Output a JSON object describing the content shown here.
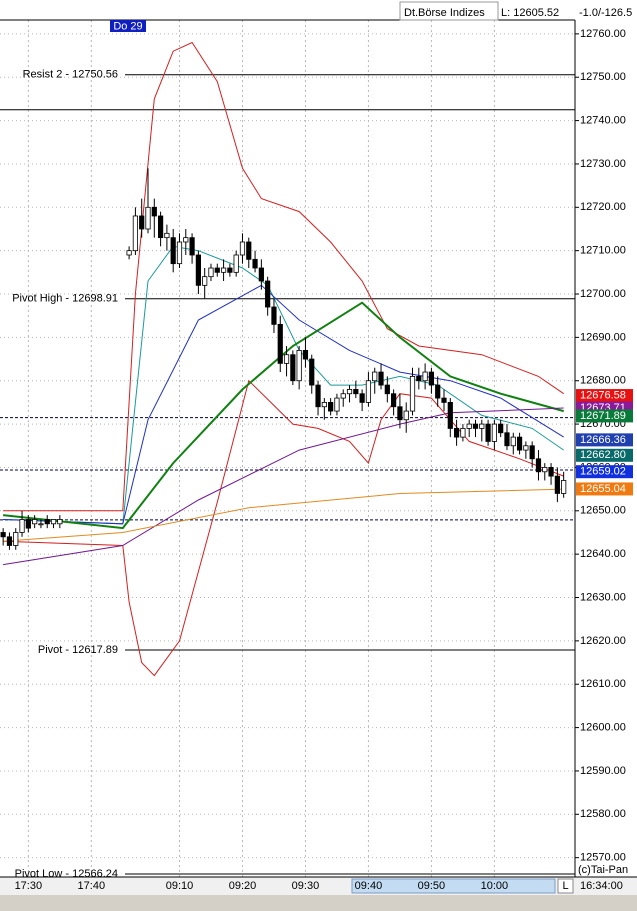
{
  "header": {
    "exchange": "Dt.Börse Indizes",
    "low": "L: 12605.52",
    "change": "-1.0/-126.5"
  },
  "chart_data": {
    "type": "candlestick",
    "day_label": "Do 29",
    "copyright": "(c)Tai-Pan",
    "current_time": "16:34:00",
    "scroll_label": "L",
    "up_color": "#ffffff",
    "down_color": "#000000",
    "x": [
      0,
      1,
      2,
      3,
      4,
      5,
      6,
      7,
      8,
      9,
      20,
      21,
      22,
      23,
      24,
      25,
      26,
      27,
      28,
      29,
      30,
      31,
      32,
      33,
      34,
      35,
      36,
      37,
      38,
      39,
      40,
      41,
      42,
      43,
      44,
      45,
      46,
      47,
      48,
      49,
      50,
      51,
      52,
      53,
      54,
      55,
      56,
      57,
      58,
      59,
      60,
      61,
      62,
      63,
      64,
      65,
      66,
      67,
      68,
      69,
      70,
      71,
      72,
      73,
      74,
      75,
      76,
      77,
      78,
      79,
      80,
      81,
      82,
      83,
      84,
      85,
      86,
      87,
      88,
      89
    ],
    "open": [
      12645,
      12644,
      12642,
      12645,
      12648,
      12647,
      12647,
      12648,
      12647,
      12647,
      12709,
      12710,
      12718,
      12715,
      12720,
      12718,
      12713,
      12713,
      12707,
      12712,
      12713,
      12709,
      12702,
      12704,
      12706,
      12705,
      12706,
      12705,
      12709,
      12712,
      12708,
      12706,
      12703,
      12697,
      12693,
      12684,
      12686,
      12680,
      12687,
      12685,
      12679,
      12674,
      12675,
      12673,
      12676,
      12677,
      12678,
      12677,
      12675,
      12680,
      12682,
      12679,
      12677,
      12674,
      12671,
      12673,
      12681,
      12680,
      12682,
      12679,
      12676,
      12675,
      12669,
      12667,
      12669,
      12670,
      12669,
      12670,
      12666,
      12670,
      12668,
      12665,
      12667,
      12664,
      12665,
      12662,
      12659,
      12660,
      12658,
      12654
    ],
    "high": [
      12646,
      12645,
      12646,
      12650,
      12649,
      12649,
      12648,
      12649,
      12648,
      12649,
      12711,
      12720,
      12722,
      12729,
      12722,
      12719,
      12716,
      12715,
      12714,
      12715,
      12714,
      12710,
      12706,
      12707,
      12707,
      12708,
      12707,
      12710,
      12714,
      12713,
      12710,
      12708,
      12704,
      12699,
      12695,
      12688,
      12687,
      12688,
      12690,
      12686,
      12680,
      12676,
      12676,
      12677,
      12678,
      12679,
      12680,
      12678,
      12682,
      12683,
      12684,
      12681,
      12678,
      12677,
      12675,
      12683,
      12683,
      12684,
      12683,
      12681,
      12678,
      12676,
      12671,
      12670,
      12671,
      12671,
      12671,
      12671,
      12671,
      12671,
      12670,
      12668,
      12668,
      12666,
      12666,
      12664,
      12661,
      12661,
      12660,
      12659
    ],
    "low": [
      12642,
      12641,
      12641,
      12644,
      12645,
      12646,
      12646,
      12646,
      12646,
      12646,
      12708,
      12709,
      12713,
      12714,
      12713,
      12711,
      12710,
      12705,
      12706,
      12709,
      12707,
      12700,
      12699,
      12703,
      12704,
      12703,
      12704,
      12704,
      12707,
      12706,
      12705,
      12701,
      12695,
      12691,
      12682,
      12681,
      12679,
      12678,
      12683,
      12677,
      12672,
      12671,
      12672,
      12672,
      12674,
      12675,
      12676,
      12673,
      12674,
      12677,
      12678,
      12675,
      12672,
      12669,
      12668,
      12672,
      12678,
      12678,
      12677,
      12674,
      12673,
      12667,
      12665,
      12666,
      12667,
      12667,
      12666,
      12665,
      12664,
      12667,
      12664,
      12663,
      12663,
      12662,
      12660,
      12657,
      12657,
      12656,
      12652,
      12653
    ],
    "close": [
      12644,
      12642,
      12645,
      12648,
      12646,
      12648,
      12647,
      12647,
      12648,
      12648,
      12710,
      12718,
      12715,
      12720,
      12718,
      12713,
      12714,
      12707,
      12712,
      12713,
      12709,
      12702,
      12704,
      12706,
      12705,
      12706,
      12705,
      12709,
      12712,
      12708,
      12706,
      12703,
      12697,
      12693,
      12684,
      12686,
      12680,
      12687,
      12685,
      12679,
      12674,
      12675,
      12673,
      12676,
      12677,
      12678,
      12677,
      12675,
      12680,
      12682,
      12679,
      12677,
      12674,
      12671,
      12673,
      12681,
      12680,
      12682,
      12679,
      12676,
      12675,
      12669,
      12667,
      12669,
      12670,
      12669,
      12670,
      12666,
      12670,
      12668,
      12665,
      12667,
      12664,
      12665,
      12662,
      12659,
      12660,
      12658,
      12654,
      12657
    ],
    "xlim": [
      -0.5,
      90.8
    ],
    "xticks": [
      {
        "value": 4,
        "label": "17:30"
      },
      {
        "value": 14,
        "label": "17:40"
      },
      {
        "value": 28,
        "label": "09:10"
      },
      {
        "value": 38,
        "label": "09:20"
      },
      {
        "value": 48,
        "label": "09:30"
      },
      {
        "value": 58,
        "label": "09:40"
      },
      {
        "value": 68,
        "label": "09:50"
      },
      {
        "value": 78,
        "label": "10:00"
      }
    ],
    "ylim": [
      12566,
      12763.2
    ],
    "yticks": [
      {
        "value": 12570,
        "label": "12570.00"
      },
      {
        "value": 12580,
        "label": "12580.00"
      },
      {
        "value": 12590,
        "label": "12590.00"
      },
      {
        "value": 12600,
        "label": "12600.00"
      },
      {
        "value": 12610,
        "label": "12610.00"
      },
      {
        "value": 12620,
        "label": "12620.00"
      },
      {
        "value": 12630,
        "label": "12630.00"
      },
      {
        "value": 12640,
        "label": "12640.00"
      },
      {
        "value": 12650,
        "label": "12650.00"
      },
      {
        "value": 12660,
        "label": "12660.00"
      },
      {
        "value": 12670,
        "label": "12670.00"
      },
      {
        "value": 12680,
        "label": "12680.00"
      },
      {
        "value": 12690,
        "label": "12690.00"
      },
      {
        "value": 12700,
        "label": "12700.00"
      },
      {
        "value": 12710,
        "label": "12710.00"
      },
      {
        "value": 12720,
        "label": "12720.00"
      },
      {
        "value": 12730,
        "label": "12730.00"
      },
      {
        "value": 12740,
        "label": "12740.00"
      },
      {
        "value": 12750,
        "label": "12750.00"
      },
      {
        "value": 12760,
        "label": "12760.00"
      }
    ],
    "grid": true,
    "levels": [
      {
        "label": "Resist 2 - 12750.56",
        "value": 12750.56
      },
      {
        "label": null,
        "value": 12742.5
      },
      {
        "label": "Pivot High - 12698.91",
        "value": 12698.91
      },
      {
        "label": "Pivot - 12617.89",
        "value": 12617.89
      },
      {
        "label": "Pivot Low - 12566.24",
        "value": 12566.24
      }
    ],
    "dashed_levels": [
      12671.5,
      12659.4,
      12647.9
    ],
    "indicators": [
      {
        "color": "#d42020",
        "width": 1,
        "x": [
          0,
          19,
          21,
          24,
          27,
          30,
          34,
          38,
          41,
          47,
          52,
          57,
          61,
          66,
          76,
          85,
          89
        ],
        "values": [
          12650,
          12650,
          12700,
          12745,
          12756,
          12758,
          12749,
          12729,
          12722,
          12719,
          12712,
          12703,
          12692,
          12688,
          12686,
          12681,
          12677
        ]
      },
      {
        "color": "#d42020",
        "width": 1,
        "x": [
          0,
          19,
          20,
          22,
          24,
          28,
          34,
          39,
          46,
          50,
          55,
          58,
          60,
          63,
          68,
          74,
          82,
          89
        ],
        "values": [
          12643,
          12642,
          12629,
          12615,
          12612,
          12620,
          12652,
          12680,
          12670,
          12669,
          12666,
          12661,
          12671,
          12677,
          12676,
          12666,
          12662,
          12658
        ]
      },
      {
        "color": "#1a9a9a",
        "width": 1,
        "x": [
          0,
          19,
          23,
          27,
          31,
          38,
          42,
          47,
          52,
          57,
          63,
          69,
          76,
          84,
          89
        ],
        "values": [
          12648,
          12647,
          12703,
          12711,
          12710,
          12706,
          12702,
          12687,
          12679,
          12679,
          12681,
          12679,
          12672,
          12669,
          12664
        ]
      },
      {
        "color": "#2030c0",
        "width": 1,
        "x": [
          0,
          19,
          23,
          31,
          41,
          47,
          55,
          63,
          71,
          79,
          89
        ],
        "values": [
          12648,
          12647,
          12671,
          12694,
          12702,
          12694,
          12687,
          12682,
          12680,
          12676,
          12667
        ]
      },
      {
        "color": "#108010",
        "width": 2,
        "x": [
          0,
          19,
          27,
          38,
          46,
          57,
          63,
          71,
          79,
          89
        ],
        "values": [
          12649,
          12646,
          12661,
          12678,
          12688,
          12698,
          12690,
          12681,
          12677,
          12673
        ]
      },
      {
        "color": "#701890",
        "width": 1,
        "x": [
          0,
          19,
          31,
          47,
          63,
          71,
          89
        ],
        "values": [
          12637.6,
          12642,
          12652.5,
          12664,
          12670,
          12672.6,
          12673.7
        ]
      },
      {
        "color": "#e08a20",
        "width": 1,
        "x": [
          0,
          19,
          39,
          63,
          89
        ],
        "values": [
          12643,
          12645,
          12650.7,
          12654,
          12655
        ]
      }
    ],
    "price_tags": {
      "values": [
        12676.58,
        12673.71,
        12671.89,
        12666.36,
        12662.8,
        12659.02,
        12655.04
      ],
      "value_labels": [
        "12676.58",
        "12673.71",
        "12671.89",
        "12666.36",
        "12662.80",
        "12659.02",
        "12655.04"
      ],
      "colors": [
        "#e81010",
        "#8a1a9a",
        "#0a7a3a",
        "#2040b0",
        "#0a6a6a",
        "#1030e0",
        "#f07a10"
      ]
    }
  }
}
